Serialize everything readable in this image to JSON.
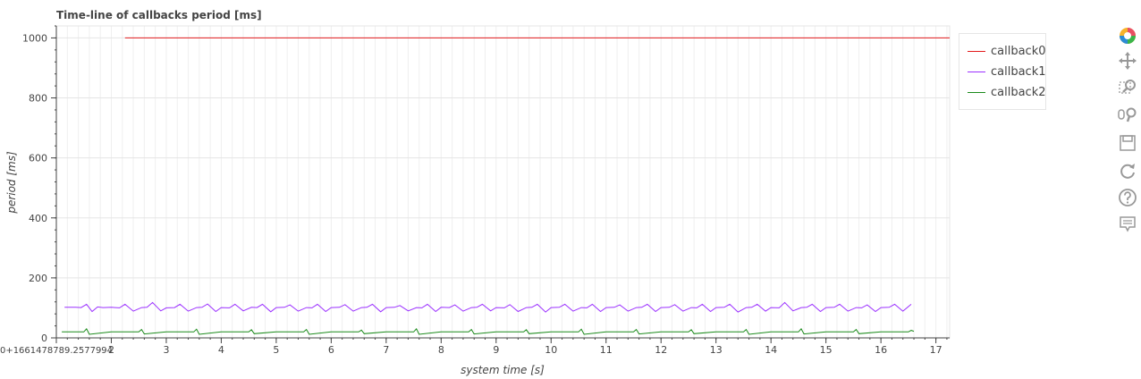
{
  "chart_data": {
    "type": "line",
    "title": "Time-line of callbacks period [ms]",
    "xlabel": "system time [s]",
    "ylabel": "period [ms]",
    "x_offset_label": "0+1661478789.2577994",
    "x_ticks": [
      2,
      3,
      4,
      5,
      6,
      7,
      8,
      9,
      10,
      11,
      12,
      13,
      14,
      15,
      16,
      17
    ],
    "y_ticks": [
      0,
      200,
      400,
      600,
      800,
      1000
    ],
    "xlim": [
      1,
      17.25
    ],
    "ylim": [
      0,
      1040
    ],
    "grid": true,
    "legend_position": "right",
    "series": [
      {
        "name": "callback0",
        "color": "#e31a1c",
        "x": [
          2.25,
          17.25
        ],
        "y": [
          1000,
          1000
        ]
      },
      {
        "name": "callback1",
        "color": "#9b30ff",
        "x": [
          1.15,
          1.35,
          1.45,
          1.55,
          1.65,
          1.75,
          1.85,
          2.0,
          2.15,
          2.25,
          2.4,
          2.55,
          2.65,
          2.75,
          2.9,
          3.0,
          3.15,
          3.25,
          3.4,
          3.55,
          3.65,
          3.75,
          3.9,
          4.0,
          4.15,
          4.25,
          4.4,
          4.55,
          4.65,
          4.75,
          4.9,
          5.0,
          5.15,
          5.25,
          5.4,
          5.55,
          5.65,
          5.75,
          5.9,
          6.0,
          6.15,
          6.25,
          6.4,
          6.55,
          6.65,
          6.75,
          6.9,
          7.0,
          7.15,
          7.25,
          7.4,
          7.55,
          7.65,
          7.75,
          7.9,
          8.0,
          8.15,
          8.25,
          8.4,
          8.55,
          8.65,
          8.75,
          8.9,
          9.0,
          9.15,
          9.25,
          9.4,
          9.55,
          9.65,
          9.75,
          9.9,
          10.0,
          10.15,
          10.25,
          10.4,
          10.55,
          10.65,
          10.75,
          10.9,
          11.0,
          11.15,
          11.25,
          11.4,
          11.55,
          11.65,
          11.75,
          11.9,
          12.0,
          12.15,
          12.25,
          12.4,
          12.55,
          12.65,
          12.75,
          12.9,
          13.0,
          13.15,
          13.25,
          13.4,
          13.55,
          13.65,
          13.75,
          13.9,
          14.0,
          14.15,
          14.25,
          14.4,
          14.55,
          14.65,
          14.75,
          14.9,
          15.0,
          15.15,
          15.25,
          15.4,
          15.55,
          15.65,
          15.75,
          15.9,
          16.0,
          16.15,
          16.25,
          16.4,
          16.55
        ],
        "y": [
          102,
          102,
          101,
          112,
          88,
          103,
          101,
          102,
          100,
          112,
          89,
          101,
          102,
          118,
          90,
          100,
          101,
          112,
          89,
          101,
          102,
          113,
          88,
          101,
          100,
          112,
          90,
          102,
          101,
          112,
          87,
          101,
          102,
          110,
          89,
          101,
          100,
          112,
          88,
          101,
          102,
          111,
          89,
          101,
          102,
          112,
          87,
          101,
          102,
          108,
          90,
          101,
          100,
          112,
          88,
          102,
          101,
          110,
          89,
          101,
          102,
          112,
          90,
          101,
          100,
          111,
          88,
          101,
          102,
          112,
          86,
          101,
          102,
          112,
          89,
          101,
          100,
          112,
          88,
          101,
          102,
          110,
          89,
          101,
          102,
          112,
          88,
          101,
          102,
          111,
          89,
          101,
          100,
          112,
          88,
          101,
          102,
          112,
          86,
          101,
          102,
          112,
          89,
          101,
          100,
          118,
          90,
          101,
          102,
          112,
          88,
          101,
          102,
          112,
          89,
          101,
          100,
          110,
          88,
          101,
          102,
          112,
          89,
          112
        ]
      },
      {
        "name": "callback2",
        "color": "#1a8a1a",
        "x": [
          1.1,
          1.5,
          1.55,
          1.6,
          2.0,
          2.5,
          2.55,
          2.6,
          3.0,
          3.5,
          3.55,
          3.6,
          4.0,
          4.5,
          4.55,
          4.6,
          5.0,
          5.5,
          5.55,
          5.6,
          6.0,
          6.5,
          6.55,
          6.6,
          7.0,
          7.5,
          7.55,
          7.6,
          8.0,
          8.5,
          8.55,
          8.6,
          9.0,
          9.5,
          9.55,
          9.6,
          10.0,
          10.5,
          10.55,
          10.6,
          11.0,
          11.5,
          11.55,
          11.6,
          12.0,
          12.5,
          12.55,
          12.6,
          13.0,
          13.5,
          13.55,
          13.6,
          14.0,
          14.5,
          14.55,
          14.6,
          15.0,
          15.5,
          15.55,
          15.6,
          16.0,
          16.5,
          16.55,
          16.6
        ],
        "y": [
          20,
          20,
          30,
          12,
          20,
          20,
          28,
          13,
          20,
          20,
          29,
          12,
          20,
          20,
          27,
          14,
          20,
          20,
          28,
          12,
          20,
          20,
          26,
          14,
          20,
          20,
          30,
          12,
          20,
          20,
          28,
          13,
          20,
          20,
          27,
          14,
          20,
          20,
          29,
          12,
          20,
          20,
          28,
          13,
          20,
          20,
          27,
          14,
          20,
          20,
          28,
          12,
          20,
          20,
          30,
          13,
          20,
          20,
          28,
          14,
          20,
          20,
          25,
          22
        ]
      }
    ]
  },
  "toolbar": {
    "tools": [
      {
        "name": "bokeh-logo-icon",
        "active": false
      },
      {
        "name": "pan-icon",
        "active": true
      },
      {
        "name": "box-zoom-icon",
        "active": false
      },
      {
        "name": "wheel-zoom-icon",
        "active": true
      },
      {
        "name": "save-icon",
        "active": false
      },
      {
        "name": "reset-icon",
        "active": false
      },
      {
        "name": "help-icon",
        "active": false
      },
      {
        "name": "hover-icon",
        "active": true
      }
    ]
  }
}
